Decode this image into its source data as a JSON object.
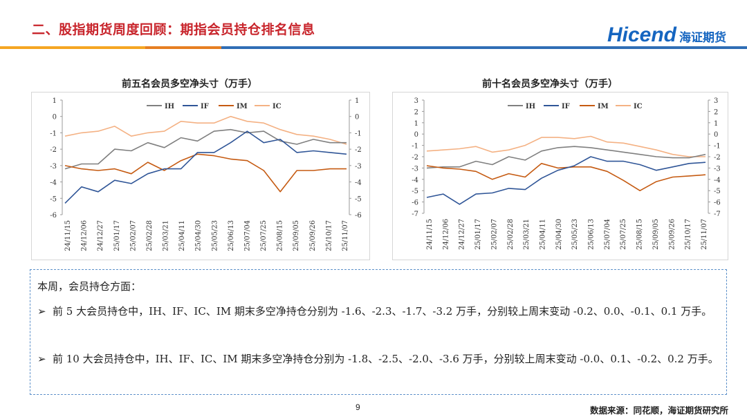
{
  "header": {
    "title": "二、股指期货周度回顾：期指会员持仓排名信息",
    "logo_en": "Hicend",
    "logo_cn": "海证期货"
  },
  "colors": {
    "IH": "#7f7f7f",
    "IF": "#2f5597",
    "IM": "#c55a11",
    "IC": "#f4b183",
    "accent": "#c8242b",
    "brand": "#1565c0"
  },
  "chart_data": [
    {
      "type": "line",
      "title": "前五名会员多空净头寸（万手）",
      "categories": [
        "24/11/15",
        "24/12/06",
        "24/12/27",
        "25/01/17",
        "25/02/07",
        "25/02/28",
        "25/03/21",
        "25/04/11",
        "25/04/30",
        "25/05/23",
        "25/06/13",
        "25/07/04",
        "25/07/25",
        "25/08/15",
        "25/09/05",
        "25/09/26",
        "25/10/17",
        "25/11/07"
      ],
      "ylim": [
        -6,
        1
      ],
      "y_ticks": [
        1,
        0,
        -1,
        -2,
        -3,
        -4,
        -5,
        -6
      ],
      "legend": "top-center",
      "series": [
        {
          "name": "IH",
          "values": [
            -3.2,
            -2.9,
            -2.9,
            -2.0,
            -2.1,
            -1.6,
            -1.9,
            -1.3,
            -1.5,
            -0.9,
            -0.8,
            -1.0,
            -0.9,
            -1.5,
            -1.7,
            -1.4,
            -1.6,
            -1.6
          ]
        },
        {
          "name": "IF",
          "values": [
            -5.3,
            -4.3,
            -4.6,
            -3.9,
            -4.1,
            -3.5,
            -3.2,
            -3.2,
            -2.2,
            -2.2,
            -1.6,
            -0.9,
            -1.6,
            -1.4,
            -2.2,
            -2.1,
            -2.2,
            -2.3
          ]
        },
        {
          "name": "IM",
          "values": [
            -3.0,
            -3.2,
            -3.3,
            -3.2,
            -3.5,
            -2.8,
            -3.3,
            -2.7,
            -2.3,
            -2.4,
            -2.6,
            -2.7,
            -3.3,
            -4.6,
            -3.3,
            -3.3,
            -3.2,
            -3.2
          ]
        },
        {
          "name": "IC",
          "values": [
            -1.2,
            -1.0,
            -0.9,
            -0.6,
            -1.2,
            -1.0,
            -0.9,
            -0.3,
            -0.4,
            -0.4,
            0.0,
            -0.3,
            -0.4,
            -0.8,
            -1.1,
            -1.2,
            -1.4,
            -1.7
          ]
        }
      ]
    },
    {
      "type": "line",
      "title": "前十名会员多空净头寸（万手）",
      "categories": [
        "24/11/15",
        "24/12/06",
        "24/12/27",
        "25/01/17",
        "25/02/07",
        "25/02/28",
        "25/03/21",
        "25/04/11",
        "25/04/30",
        "25/05/23",
        "25/06/13",
        "25/07/04",
        "25/07/25",
        "25/08/15",
        "25/09/05",
        "25/09/26",
        "25/10/17",
        "25/11/07"
      ],
      "ylim": [
        -7,
        3
      ],
      "y_ticks": [
        3,
        2,
        1,
        0,
        -1,
        -2,
        -3,
        -4,
        -5,
        -6,
        -7
      ],
      "legend": "top-center",
      "series": [
        {
          "name": "IH",
          "values": [
            -3.0,
            -2.9,
            -2.9,
            -2.4,
            -2.7,
            -2.0,
            -2.3,
            -1.5,
            -1.2,
            -1.1,
            -1.2,
            -1.4,
            -1.6,
            -1.8,
            -2.0,
            -2.1,
            -2.1,
            -1.8
          ]
        },
        {
          "name": "IF",
          "values": [
            -5.6,
            -5.3,
            -6.2,
            -5.3,
            -5.2,
            -4.8,
            -4.9,
            -3.9,
            -3.2,
            -2.8,
            -2.0,
            -2.4,
            -2.4,
            -2.7,
            -3.2,
            -2.9,
            -2.6,
            -2.5
          ]
        },
        {
          "name": "IM",
          "values": [
            -2.8,
            -3.0,
            -3.1,
            -3.3,
            -4.0,
            -3.5,
            -3.8,
            -2.6,
            -3.0,
            -2.9,
            -2.9,
            -3.3,
            -4.1,
            -5.0,
            -4.2,
            -3.8,
            -3.7,
            -3.6
          ]
        },
        {
          "name": "IC",
          "values": [
            -1.5,
            -1.4,
            -1.3,
            -1.1,
            -1.6,
            -1.4,
            -1.0,
            -0.3,
            -0.3,
            -0.4,
            -0.2,
            -0.7,
            -0.8,
            -1.1,
            -1.4,
            -1.8,
            -2.0,
            -2.0
          ]
        }
      ]
    }
  ],
  "notes": {
    "heading": "本周，会员持仓方面：",
    "items": [
      "前 5 大会员持仓中，IH、IF、IC、IM 期末多空净持仓分别为 -1.6、-2.3、-1.7、-3.2 万手，分别较上周末变动 -0.2、0.0、-0.1、0.1 万手。",
      "前 10 大会员持仓中，IH、IF、IC、IM 期末多空净持仓分别为 -1.8、-2.5、-2.0、-3.6 万手，分别较上周末变动 -0.0、0.1、-0.2、0.2 万手。"
    ]
  },
  "footer": {
    "page_number": "9",
    "source": "数据来源：同花顺，海证期货研究所"
  }
}
